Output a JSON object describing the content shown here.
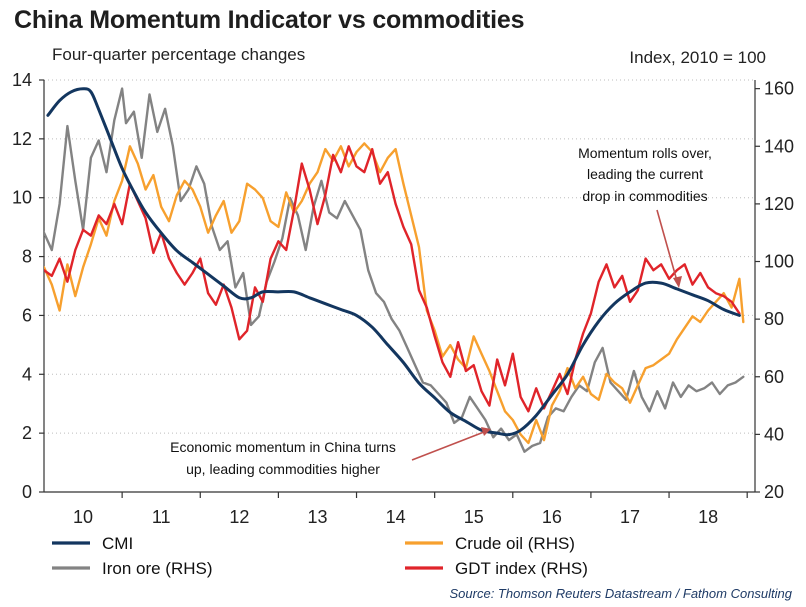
{
  "header": {
    "title": "China Momentum Indicator vs commodities",
    "subtitle": "Four-quarter percentage changes",
    "rhs_axis_label": "Index, 2010 = 100",
    "source": "Source: Thomson Reuters Datastream / Fathom Consulting"
  },
  "annotations": {
    "top_right": [
      "Momentum rolls over,",
      "leading the current",
      "drop in commodities"
    ],
    "bottom": [
      "Economic momentum in China turns",
      "up, leading commodities higher"
    ]
  },
  "chart_data": {
    "type": "line",
    "title": "China Momentum Indicator vs commodities",
    "xlabel": "",
    "ylabel": "Four-quarter percentage changes",
    "y2label": "Index, 2010 = 100",
    "xlim": [
      2009.5,
      2018.6
    ],
    "ylim": [
      0,
      14
    ],
    "y2lim": [
      20,
      163
    ],
    "x_tick_labels": [
      "10",
      "11",
      "12",
      "13",
      "14",
      "15",
      "16",
      "17",
      "18"
    ],
    "x_tick_positions": [
      2010,
      2011,
      2012,
      2013,
      2014,
      2015,
      2016,
      2017,
      2018
    ],
    "y_ticks": [
      0,
      2,
      4,
      6,
      8,
      10,
      12,
      14
    ],
    "y2_ticks": [
      20,
      40,
      60,
      80,
      100,
      120,
      140,
      160
    ],
    "grid": true,
    "legend_position": "bottom",
    "series": [
      {
        "name": "CMI",
        "axis": "left",
        "color": "#13365f",
        "smooth": true,
        "x": [
          2009.55,
          2009.7,
          2009.85,
          2010.0,
          2010.1,
          2010.2,
          2010.35,
          2010.5,
          2010.65,
          2010.8,
          2011.0,
          2011.2,
          2011.4,
          2011.6,
          2011.8,
          2012.0,
          2012.15,
          2012.3,
          2012.5,
          2012.7,
          2012.9,
          2013.1,
          2013.3,
          2013.5,
          2013.7,
          2013.9,
          2014.1,
          2014.3,
          2014.5,
          2014.7,
          2014.9,
          2015.1,
          2015.3,
          2015.45,
          2015.6,
          2015.8,
          2016.0,
          2016.2,
          2016.4,
          2016.6,
          2016.8,
          2017.0,
          2017.2,
          2017.4,
          2017.6,
          2017.8,
          2018.0,
          2018.2,
          2018.4
        ],
        "values": [
          12.8,
          13.3,
          13.6,
          13.7,
          13.6,
          13.0,
          12.0,
          11.0,
          10.2,
          9.5,
          8.8,
          8.2,
          7.8,
          7.4,
          7.0,
          6.6,
          6.6,
          6.8,
          6.8,
          6.8,
          6.6,
          6.4,
          6.2,
          6.0,
          5.6,
          5.0,
          4.4,
          3.7,
          3.2,
          2.7,
          2.4,
          2.1,
          2.0,
          1.95,
          2.1,
          2.6,
          3.3,
          4.0,
          5.0,
          5.8,
          6.4,
          6.8,
          7.1,
          7.1,
          6.9,
          6.7,
          6.5,
          6.2,
          6.0
        ]
      },
      {
        "name": "Iron ore (RHS)",
        "axis": "right",
        "color": "#838383",
        "smooth": false,
        "x": [
          2009.5,
          2009.6,
          2009.7,
          2009.8,
          2009.9,
          2010.0,
          2010.1,
          2010.2,
          2010.3,
          2010.4,
          2010.5,
          2010.55,
          2010.65,
          2010.75,
          2010.85,
          2010.95,
          2011.05,
          2011.15,
          2011.25,
          2011.35,
          2011.45,
          2011.55,
          2011.65,
          2011.75,
          2011.85,
          2011.95,
          2012.05,
          2012.15,
          2012.25,
          2012.35,
          2012.45,
          2012.55,
          2012.65,
          2012.75,
          2012.85,
          2012.95,
          2013.05,
          2013.15,
          2013.25,
          2013.35,
          2013.45,
          2013.55,
          2013.65,
          2013.75,
          2013.85,
          2013.95,
          2014.05,
          2014.15,
          2014.25,
          2014.35,
          2014.45,
          2014.55,
          2014.65,
          2014.75,
          2014.85,
          2014.95,
          2015.05,
          2015.15,
          2015.25,
          2015.35,
          2015.45,
          2015.55,
          2015.65,
          2015.75,
          2015.85,
          2015.95,
          2016.05,
          2016.15,
          2016.25,
          2016.35,
          2016.45,
          2016.55,
          2016.65,
          2016.75,
          2016.85,
          2016.95,
          2017.05,
          2017.15,
          2017.25,
          2017.35,
          2017.45,
          2017.55,
          2017.65,
          2017.75,
          2017.85,
          2017.95,
          2018.05,
          2018.15,
          2018.25,
          2018.35,
          2018.45
        ],
        "values": [
          110,
          104,
          120,
          147,
          128,
          111,
          136,
          142,
          131,
          149,
          160,
          148,
          152,
          136,
          158,
          145,
          153,
          140,
          121,
          125,
          133,
          127,
          112,
          104,
          107,
          91,
          96,
          78,
          81,
          93,
          100,
          108,
          122,
          116,
          104,
          119,
          128,
          117,
          115,
          121,
          116,
          111,
          97,
          89,
          86,
          80,
          76,
          70,
          64,
          58,
          57,
          54,
          51,
          44,
          46,
          53,
          49,
          45,
          39,
          42,
          38,
          40,
          34,
          36,
          37,
          46,
          49,
          48,
          53,
          57,
          55,
          65,
          70,
          58,
          55,
          52,
          62,
          53,
          48,
          55,
          49,
          58,
          53,
          57,
          55,
          56,
          58,
          54,
          57,
          58,
          60
        ]
      },
      {
        "name": "Crude oil (RHS)",
        "axis": "right",
        "color": "#f7a02e",
        "smooth": false,
        "x": [
          2009.5,
          2009.6,
          2009.7,
          2009.8,
          2009.9,
          2010.0,
          2010.1,
          2010.2,
          2010.3,
          2010.4,
          2010.5,
          2010.6,
          2010.7,
          2010.8,
          2010.9,
          2011.0,
          2011.1,
          2011.2,
          2011.3,
          2011.4,
          2011.5,
          2011.6,
          2011.7,
          2011.8,
          2011.9,
          2012.0,
          2012.1,
          2012.2,
          2012.3,
          2012.4,
          2012.5,
          2012.6,
          2012.7,
          2012.8,
          2012.9,
          2013.0,
          2013.1,
          2013.2,
          2013.3,
          2013.4,
          2013.5,
          2013.6,
          2013.7,
          2013.8,
          2013.9,
          2014.0,
          2014.1,
          2014.2,
          2014.3,
          2014.4,
          2014.5,
          2014.6,
          2014.7,
          2014.8,
          2014.9,
          2015.0,
          2015.1,
          2015.2,
          2015.3,
          2015.4,
          2015.5,
          2015.6,
          2015.7,
          2015.8,
          2015.9,
          2016.0,
          2016.1,
          2016.2,
          2016.3,
          2016.4,
          2016.5,
          2016.6,
          2016.7,
          2016.8,
          2016.9,
          2017.0,
          2017.1,
          2017.2,
          2017.3,
          2017.4,
          2017.5,
          2017.6,
          2017.7,
          2017.8,
          2017.9,
          2018.0,
          2018.1,
          2018.2,
          2018.3,
          2018.4,
          2018.45
        ],
        "values": [
          98,
          92,
          83,
          99,
          88,
          98,
          106,
          115,
          109,
          121,
          128,
          140,
          134,
          125,
          130,
          119,
          114,
          123,
          128,
          125,
          119,
          110,
          116,
          121,
          110,
          114,
          127,
          125,
          122,
          114,
          112,
          124,
          117,
          121,
          127,
          131,
          139,
          135,
          140,
          133,
          138,
          141,
          138,
          131,
          136,
          139,
          127,
          116,
          105,
          83,
          76,
          67,
          71,
          66,
          63,
          74,
          68,
          62,
          55,
          48,
          45,
          40,
          37,
          45,
          38,
          50,
          55,
          63,
          56,
          60,
          54,
          52,
          61,
          58,
          56,
          51,
          57,
          63,
          64,
          66,
          68,
          73,
          77,
          81,
          79,
          83,
          86,
          89,
          84,
          94,
          79
        ]
      },
      {
        "name": "GDT index (RHS)",
        "axis": "right",
        "color": "#e0242a",
        "smooth": false,
        "x": [
          2009.5,
          2009.6,
          2009.7,
          2009.8,
          2009.9,
          2010.0,
          2010.1,
          2010.2,
          2010.3,
          2010.4,
          2010.5,
          2010.6,
          2010.7,
          2010.8,
          2010.9,
          2011.0,
          2011.1,
          2011.2,
          2011.3,
          2011.4,
          2011.5,
          2011.6,
          2011.7,
          2011.8,
          2011.9,
          2012.0,
          2012.1,
          2012.2,
          2012.3,
          2012.4,
          2012.5,
          2012.6,
          2012.7,
          2012.8,
          2012.9,
          2013.0,
          2013.1,
          2013.2,
          2013.3,
          2013.4,
          2013.5,
          2013.6,
          2013.7,
          2013.8,
          2013.9,
          2014.0,
          2014.1,
          2014.2,
          2014.3,
          2014.4,
          2014.5,
          2014.6,
          2014.7,
          2014.8,
          2014.9,
          2015.0,
          2015.1,
          2015.2,
          2015.3,
          2015.4,
          2015.5,
          2015.6,
          2015.7,
          2015.8,
          2015.9,
          2016.0,
          2016.1,
          2016.2,
          2016.3,
          2016.4,
          2016.5,
          2016.6,
          2016.7,
          2016.8,
          2016.9,
          2017.0,
          2017.1,
          2017.2,
          2017.3,
          2017.4,
          2017.5,
          2017.6,
          2017.7,
          2017.8,
          2017.9,
          2018.0,
          2018.1,
          2018.2,
          2018.3,
          2018.4
        ],
        "values": [
          97,
          95,
          101,
          93,
          104,
          111,
          109,
          116,
          113,
          120,
          113,
          127,
          121,
          115,
          103,
          110,
          101,
          96,
          92,
          96,
          101,
          89,
          85,
          92,
          84,
          73,
          76,
          91,
          86,
          101,
          107,
          104,
          118,
          134,
          125,
          113,
          123,
          137,
          131,
          140,
          133,
          131,
          139,
          127,
          131,
          120,
          112,
          106,
          90,
          84,
          74,
          65,
          60,
          72,
          62,
          64,
          55,
          50,
          66,
          57,
          68,
          53,
          48,
          56,
          49,
          55,
          61,
          54,
          66,
          75,
          82,
          93,
          99,
          91,
          95,
          86,
          90,
          101,
          97,
          99,
          94,
          97,
          99,
          92,
          96,
          91,
          89,
          88,
          86,
          82
        ]
      }
    ]
  }
}
